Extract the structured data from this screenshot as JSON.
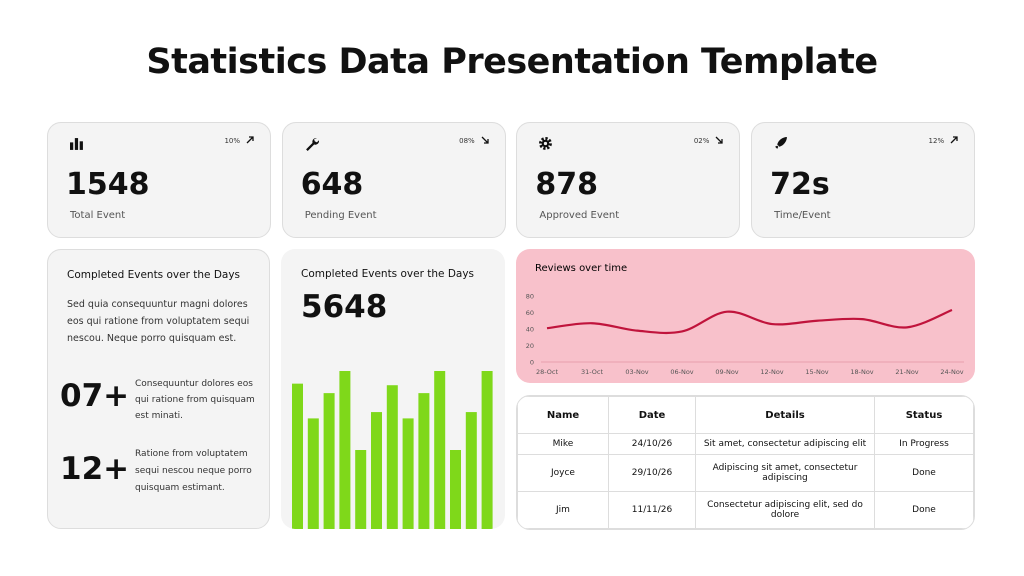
{
  "title": "Statistics Data Presentation Template",
  "stats": [
    {
      "value": "1548",
      "label": "Total Event",
      "change": "10%",
      "trend": "up",
      "icon": "chart"
    },
    {
      "value": "648",
      "label": "Pending Event",
      "change": "08%",
      "trend": "down",
      "icon": "wrench"
    },
    {
      "value": "878",
      "label": "Approved Event",
      "change": "02%",
      "trend": "down",
      "icon": "gear"
    },
    {
      "value": "72s",
      "label": "Time/Event",
      "change": "12%",
      "trend": "up",
      "icon": "rocket"
    }
  ],
  "summary": {
    "title": "Completed Events over the Days",
    "text": "Sed quia consequuntur magni dolores eos qui ratione from voluptatem sequi nescou. Neque porro quisquam est.",
    "items": [
      {
        "value": "07+",
        "text": "Consequuntur dolores eos qui ratione from quisquam est minati."
      },
      {
        "value": "12+",
        "text": "Ratione from voluptatem sequi nescou neque porro quisquam estimant."
      }
    ]
  },
  "chart_data": [
    {
      "type": "bar",
      "title": "Completed Events over the Days",
      "total": "5648",
      "color": "#7fd81a",
      "values": [
        92,
        70,
        86,
        100,
        50,
        74,
        91,
        70,
        86,
        100,
        50,
        74,
        100
      ]
    },
    {
      "type": "line",
      "title": "Reviews over time",
      "categories": [
        "28-Oct",
        "31-Oct",
        "03-Nov",
        "06-Nov",
        "09-Nov",
        "12-Nov",
        "15-Nov",
        "18-Nov",
        "21-Nov",
        "24-Nov"
      ],
      "series": [
        {
          "name": "Reviews",
          "color": "#c0143c",
          "values": [
            41,
            47,
            38,
            37,
            61,
            46,
            50,
            52,
            42,
            63
          ]
        }
      ],
      "ylim": [
        0,
        80
      ],
      "yticks": [
        0,
        20,
        40,
        60,
        80
      ]
    }
  ],
  "table": {
    "header": [
      "Name",
      "Date",
      "Details",
      "Status"
    ],
    "rows": [
      [
        "Mike",
        "24/10/26",
        "Sit amet, consectetur adipiscing elit",
        "In Progress"
      ],
      [
        "Joyce",
        "29/10/26",
        "Adipiscing sit amet, consectetur adipiscing",
        "Done"
      ],
      [
        "Jim",
        "11/11/26",
        "Consectetur adipiscing elit, sed do dolore",
        "Done"
      ]
    ]
  }
}
